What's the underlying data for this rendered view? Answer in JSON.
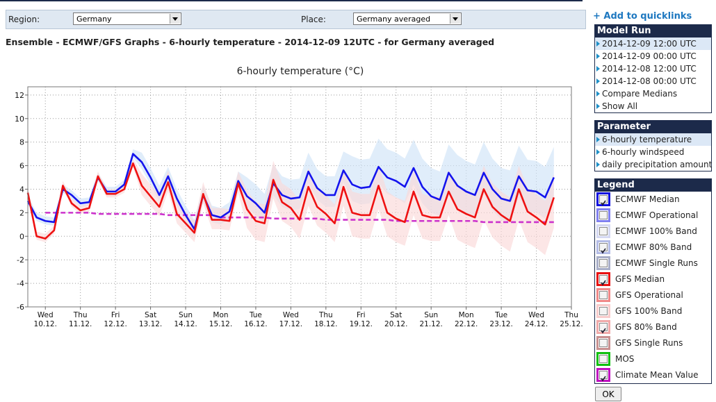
{
  "filter": {
    "region_label": "Region:",
    "region": "Germany",
    "place_label": "Place:",
    "place": "Germany averaged"
  },
  "heading": "Ensemble - ECMWF/GFS Graphs - 6-hourly temperature - 2014-12-09 12UTC - for Germany averaged",
  "quicklinks": "+ Add to quicklinks",
  "model_run": {
    "title": "Model Run",
    "selected": 0,
    "items": [
      "2014-12-09 12:00 UTC",
      "2014-12-09 00:00 UTC",
      "2014-12-08 12:00 UTC",
      "2014-12-08 00:00 UTC",
      "Compare Medians",
      "Show All"
    ]
  },
  "parameter": {
    "title": "Parameter",
    "selected": 0,
    "items": [
      "6-hourly temperature",
      "6-hourly windspeed",
      "daily precipitation amount"
    ]
  },
  "legend": {
    "title": "Legend",
    "items": [
      {
        "label": "ECMWF Median",
        "color": "#1010e0",
        "checked": true
      },
      {
        "label": "ECMWF Operational",
        "color": "#8080f0",
        "checked": false
      },
      {
        "label": "ECMWF 100% Band",
        "color": "#d4d8f2",
        "checked": false
      },
      {
        "label": "ECMWF 80% Band",
        "color": "#b4bce6",
        "checked": true
      },
      {
        "label": "ECMWF Single Runs",
        "color": "#a8aec8",
        "checked": false
      },
      {
        "label": "GFS Median",
        "color": "#e81010",
        "checked": true
      },
      {
        "label": "GFS Operational",
        "color": "#f08888",
        "checked": false
      },
      {
        "label": "GFS 100% Band",
        "color": "#f8cccc",
        "checked": false
      },
      {
        "label": "GFS 80% Band",
        "color": "#f0aaaa",
        "checked": true
      },
      {
        "label": "GFS Single Runs",
        "color": "#c89090",
        "checked": false
      },
      {
        "label": "MOS",
        "color": "#10c010",
        "checked": false
      },
      {
        "label": "Climate Mean Value",
        "color": "#c010c0",
        "checked": true
      }
    ]
  },
  "ok": "OK",
  "chart_data": {
    "type": "line",
    "title": "6-hourly temperature (°C)",
    "categories": [
      null,
      null,
      "Wed 10.12.",
      null,
      null,
      null,
      "Thu 11.12.",
      null,
      null,
      null,
      "Fri 12.12.",
      null,
      null,
      null,
      "Sat 13.12.",
      null,
      null,
      null,
      "Sun 14.12.",
      null,
      null,
      null,
      "Mon 15.12.",
      null,
      null,
      null,
      "Tue 16.12.",
      null,
      null,
      null,
      "Wed 17.12.",
      null,
      null,
      null,
      "Thu 18.12.",
      null,
      null,
      null,
      "Fri 19.12.",
      null,
      null,
      null,
      "Sat 20.12.",
      null,
      null,
      null,
      "Sun 21.12.",
      null,
      null,
      null,
      "Mon 22.12.",
      null,
      null,
      null,
      "Tue 23.12.",
      null,
      null,
      null,
      "Wed 24.12.",
      null,
      null,
      null,
      "Thu 25.12."
    ],
    "ylim": [
      -6,
      12.7
    ],
    "yticks": [
      -6,
      -4,
      -2,
      0,
      2,
      4,
      6,
      8,
      10,
      12
    ],
    "grid": true,
    "bands": [
      {
        "color": "#cfe4f8",
        "upper": [
          3.4,
          2.0,
          1.7,
          1.6,
          4.4,
          3.9,
          3.2,
          3.3,
          5.4,
          4.2,
          4.2,
          4.8,
          7.4,
          7.1,
          5.8,
          4.3,
          5.9,
          4.0,
          2.6,
          1.4,
          4.3,
          2.6,
          2.4,
          2.9,
          5.5,
          5.0,
          4.4,
          3.6,
          6.1,
          5.1,
          4.8,
          4.9,
          7.1,
          5.7,
          5.1,
          5.1,
          7.2,
          6.8,
          6.5,
          6.6,
          8.3,
          7.4,
          7.1,
          6.6,
          8.2,
          6.6,
          5.8,
          5.5,
          7.8,
          6.9,
          6.4,
          6.1,
          8.0,
          6.6,
          5.8,
          5.6,
          7.7,
          6.5,
          6.4,
          5.9,
          7.6,
          null,
          null
        ],
        "lower": [
          2.7,
          1.3,
          1.0,
          0.9,
          3.7,
          3.2,
          2.5,
          2.6,
          4.7,
          3.5,
          3.5,
          4.1,
          6.7,
          5.7,
          4.4,
          2.9,
          4.5,
          2.6,
          1.2,
          0.0,
          2.9,
          1.2,
          1.0,
          1.5,
          4.1,
          2.4,
          1.8,
          1.0,
          3.5,
          2.5,
          2.2,
          2.3,
          4.5,
          3.1,
          2.5,
          2.5,
          4.6,
          3.0,
          2.7,
          2.8,
          4.5,
          3.6,
          3.3,
          2.8,
          4.4,
          2.8,
          2.0,
          1.7,
          4.0,
          2.5,
          2.0,
          1.7,
          3.6,
          2.2,
          1.4,
          1.2,
          3.3,
          2.1,
          2.0,
          1.5,
          3.2,
          null,
          null
        ]
      },
      {
        "color": "#fbd8d8",
        "upper": [
          4.1,
          0.4,
          0.2,
          0.9,
          4.7,
          3.2,
          2.6,
          2.8,
          5.5,
          4.0,
          4.0,
          4.4,
          6.6,
          5.3,
          4.4,
          3.5,
          5.6,
          2.9,
          2.1,
          1.3,
          4.6,
          2.4,
          2.4,
          2.3,
          5.5,
          3.9,
          2.9,
          2.7,
          6.4,
          4.5,
          4.0,
          3.0,
          5.8,
          4.1,
          3.5,
          2.7,
          5.8,
          3.8,
          3.6,
          3.6,
          6.1,
          3.8,
          3.3,
          3.0,
          5.6,
          3.6,
          3.4,
          3.4,
          5.6,
          4.3,
          3.9,
          3.6,
          6.0,
          4.5,
          3.8,
          3.3,
          6.0,
          4.1,
          3.6,
          3.0,
          5.3,
          null,
          null
        ],
        "lower": [
          3.4,
          -0.3,
          -0.5,
          0.2,
          4.0,
          2.5,
          1.9,
          2.1,
          4.8,
          3.3,
          3.3,
          3.7,
          5.9,
          3.5,
          2.6,
          1.7,
          3.8,
          1.1,
          0.3,
          -0.5,
          2.8,
          0.6,
          0.6,
          0.5,
          3.7,
          0.7,
          -0.3,
          -0.5,
          3.2,
          1.3,
          0.8,
          -0.2,
          2.6,
          0.9,
          0.3,
          -0.5,
          2.6,
          0.0,
          -0.2,
          -0.2,
          2.3,
          0.0,
          -0.5,
          -0.8,
          1.8,
          -0.2,
          -0.4,
          -0.4,
          1.8,
          -0.3,
          -0.7,
          -1.0,
          1.4,
          -0.1,
          -0.8,
          -1.3,
          1.4,
          -0.5,
          -1.0,
          -1.6,
          0.7,
          null,
          null
        ]
      }
    ],
    "series": [
      {
        "color": "#cc33cc",
        "dashed": true,
        "values": [
          null,
          null,
          2.0,
          2.0,
          2.0,
          2.0,
          2.0,
          2.0,
          1.9,
          1.9,
          1.9,
          1.9,
          1.9,
          1.9,
          1.9,
          1.9,
          1.8,
          1.8,
          1.8,
          1.8,
          1.8,
          1.8,
          1.6,
          1.6,
          1.6,
          1.6,
          1.6,
          1.6,
          1.5,
          1.5,
          1.5,
          1.5,
          1.5,
          1.5,
          1.4,
          1.4,
          1.4,
          1.4,
          1.4,
          1.4,
          1.4,
          1.4,
          1.3,
          1.3,
          1.3,
          1.3,
          1.3,
          1.3,
          1.3,
          1.3,
          1.3,
          1.3,
          1.2,
          1.2,
          1.2,
          1.2,
          1.2,
          1.2,
          1.2,
          1.2,
          1.2,
          null,
          null
        ]
      },
      {
        "color": "#1414ee",
        "dashed": false,
        "values": [
          3.0,
          1.6,
          1.3,
          1.2,
          4.0,
          3.5,
          2.8,
          2.9,
          5.0,
          3.8,
          3.8,
          4.4,
          7.0,
          6.3,
          5.0,
          3.5,
          5.1,
          3.2,
          1.8,
          0.6,
          3.5,
          1.8,
          1.6,
          2.1,
          4.7,
          3.4,
          2.8,
          2.0,
          4.5,
          3.5,
          3.2,
          3.3,
          5.5,
          4.1,
          3.5,
          3.5,
          5.6,
          4.4,
          4.1,
          4.2,
          5.9,
          5.0,
          4.7,
          4.2,
          5.8,
          4.2,
          3.4,
          3.1,
          5.4,
          4.3,
          3.8,
          3.5,
          5.4,
          4.0,
          3.2,
          3.0,
          5.1,
          3.9,
          3.8,
          3.3,
          5.0,
          null,
          null
        ]
      },
      {
        "color": "#ee1111",
        "dashed": false,
        "values": [
          3.7,
          0.0,
          -0.2,
          0.5,
          4.3,
          2.8,
          2.2,
          2.4,
          5.1,
          3.6,
          3.6,
          4.0,
          6.2,
          4.3,
          3.4,
          2.5,
          4.6,
          1.9,
          1.1,
          0.3,
          3.6,
          1.4,
          1.4,
          1.3,
          4.5,
          2.3,
          1.3,
          1.1,
          4.8,
          2.9,
          2.4,
          1.4,
          4.2,
          2.5,
          1.9,
          1.1,
          4.2,
          2.0,
          1.8,
          1.8,
          4.3,
          2.0,
          1.5,
          1.2,
          3.8,
          1.8,
          1.6,
          1.6,
          3.8,
          2.3,
          1.9,
          1.6,
          4.0,
          2.5,
          1.8,
          1.3,
          4.0,
          2.1,
          1.6,
          1.0,
          3.3,
          null,
          null
        ]
      }
    ]
  }
}
